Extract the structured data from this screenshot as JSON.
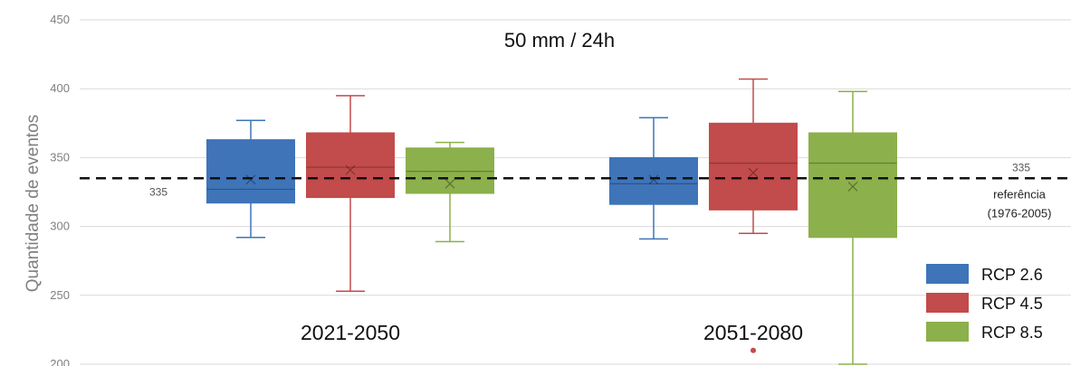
{
  "chart_data": {
    "type": "box",
    "title": "50 mm / 24h",
    "ylabel": "Quantidade  de eventos",
    "ylim": [
      200,
      450
    ],
    "yticks": [
      200,
      250,
      300,
      350,
      400,
      450
    ],
    "grid": true,
    "categories": [
      "2021-2050",
      "2051-2080"
    ],
    "series": [
      {
        "name": "RCP 2.6",
        "color": "#3f74b8",
        "boxes": [
          {
            "min": 292,
            "q1": 317,
            "median": 327,
            "q3": 363,
            "max": 377,
            "mean": 334,
            "outliers": []
          },
          {
            "min": 291,
            "q1": 316,
            "median": 331,
            "q3": 350,
            "max": 379,
            "mean": 334,
            "outliers": []
          }
        ]
      },
      {
        "name": "RCP 4.5",
        "color": "#c24b4b",
        "boxes": [
          {
            "min": 253,
            "q1": 321,
            "median": 343,
            "q3": 368,
            "max": 395,
            "mean": 341,
            "outliers": []
          },
          {
            "min": 295,
            "q1": 312,
            "median": 346,
            "q3": 375,
            "max": 407,
            "mean": 339,
            "outliers": [
              210
            ]
          }
        ]
      },
      {
        "name": "RCP 8.5",
        "color": "#8cb04b",
        "boxes": [
          {
            "min": 289,
            "q1": 324,
            "median": 340,
            "q3": 357,
            "max": 361,
            "mean": 331,
            "outliers": []
          },
          {
            "min": 200,
            "q1": 292,
            "median": 346,
            "q3": 368,
            "max": 398,
            "mean": 329,
            "outliers": []
          }
        ]
      }
    ],
    "reference": {
      "value": 335,
      "left_label": "335",
      "right_label": "335",
      "text_line1": "referência",
      "text_line2": "(1976-2005)"
    },
    "legend": {
      "placement": "bottom-right",
      "items": [
        "RCP 2.6",
        "RCP 4.5",
        "RCP 8.5"
      ]
    }
  }
}
